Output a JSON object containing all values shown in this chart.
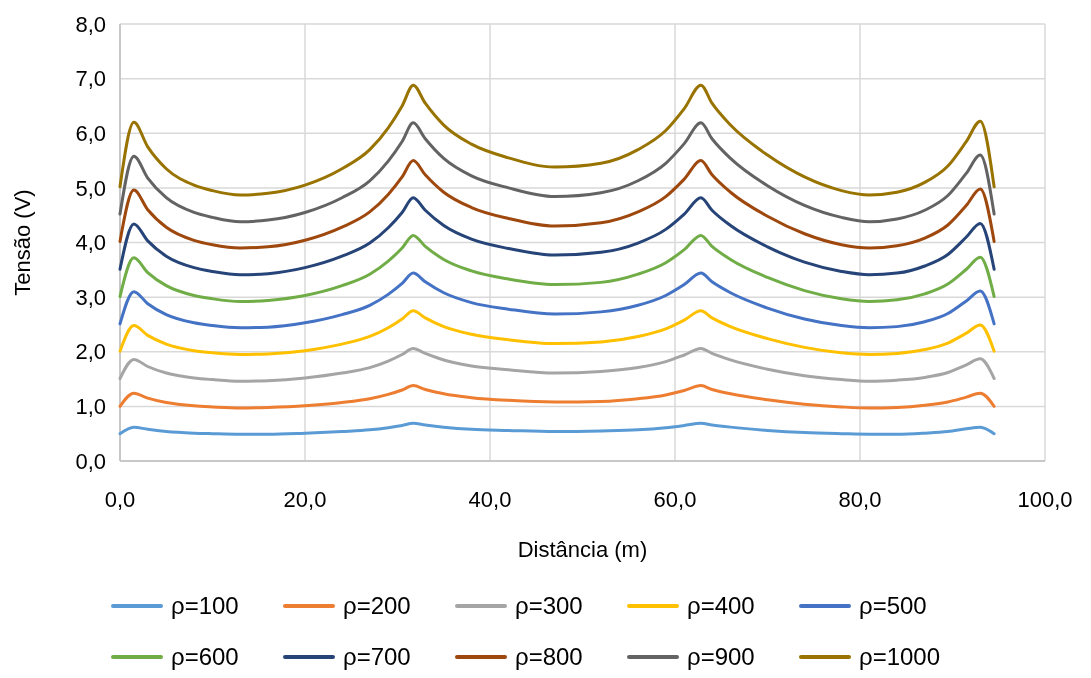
{
  "chart_data": {
    "type": "line",
    "xlabel": "Distância (m)",
    "ylabel": "Tensão (V)",
    "x": [
      0,
      1.5,
      3,
      5,
      8,
      10,
      13,
      16,
      20,
      24,
      27,
      29,
      30.5,
      31.7,
      33,
      35,
      38,
      42,
      47,
      52,
      56,
      59,
      61,
      62.8,
      64,
      66,
      70,
      74,
      78,
      81,
      84,
      87,
      89.5,
      91.5,
      93,
      94.5
    ],
    "xlim": [
      0,
      100
    ],
    "xticks": [
      {
        "value": 0,
        "label": "0,0"
      },
      {
        "value": 20,
        "label": "20,0"
      },
      {
        "value": 40,
        "label": "40,0"
      },
      {
        "value": 60,
        "label": "60,0"
      },
      {
        "value": 80,
        "label": "80,0"
      },
      {
        "value": 100,
        "label": "100,0"
      }
    ],
    "ylim": [
      0,
      8
    ],
    "yticks": [
      {
        "value": 0,
        "label": "0,0"
      },
      {
        "value": 1,
        "label": "1,0"
      },
      {
        "value": 2,
        "label": "2,0"
      },
      {
        "value": 3,
        "label": "3,0"
      },
      {
        "value": 4,
        "label": "4,0"
      },
      {
        "value": 5,
        "label": "5,0"
      },
      {
        "value": 6,
        "label": "6,0"
      },
      {
        "value": 7,
        "label": "7,0"
      },
      {
        "value": 8,
        "label": "8,0"
      }
    ],
    "grid": true,
    "legend": "bottom",
    "marker": "none",
    "line_style": "solid",
    "series": [
      {
        "name": "ρ=100",
        "color": "#5b9bd5",
        "values": [
          0.5,
          0.62,
          0.58,
          0.54,
          0.51,
          0.5,
          0.49,
          0.49,
          0.51,
          0.54,
          0.57,
          0.61,
          0.65,
          0.69,
          0.66,
          0.62,
          0.58,
          0.56,
          0.54,
          0.55,
          0.57,
          0.61,
          0.65,
          0.69,
          0.66,
          0.62,
          0.56,
          0.52,
          0.5,
          0.49,
          0.49,
          0.51,
          0.54,
          0.59,
          0.62,
          0.5
        ]
      },
      {
        "name": "ρ=200",
        "color": "#ed7d31",
        "values": [
          1.0,
          1.24,
          1.15,
          1.07,
          1.01,
          0.99,
          0.97,
          0.98,
          1.01,
          1.07,
          1.14,
          1.22,
          1.3,
          1.38,
          1.31,
          1.23,
          1.16,
          1.11,
          1.08,
          1.09,
          1.14,
          1.21,
          1.29,
          1.38,
          1.31,
          1.23,
          1.12,
          1.04,
          0.99,
          0.97,
          0.98,
          1.02,
          1.08,
          1.17,
          1.24,
          1.0
        ]
      },
      {
        "name": "ρ=300",
        "color": "#a5a5a5",
        "values": [
          1.51,
          1.86,
          1.73,
          1.61,
          1.52,
          1.49,
          1.46,
          1.47,
          1.52,
          1.61,
          1.71,
          1.83,
          1.95,
          2.06,
          1.97,
          1.85,
          1.74,
          1.67,
          1.61,
          1.64,
          1.71,
          1.82,
          1.94,
          2.06,
          1.97,
          1.85,
          1.68,
          1.56,
          1.49,
          1.46,
          1.48,
          1.53,
          1.62,
          1.76,
          1.87,
          1.51
        ]
      },
      {
        "name": "ρ=400",
        "color": "#ffc000",
        "values": [
          2.01,
          2.48,
          2.3,
          2.14,
          2.02,
          1.98,
          1.95,
          1.96,
          2.02,
          2.14,
          2.28,
          2.44,
          2.6,
          2.75,
          2.62,
          2.46,
          2.32,
          2.22,
          2.15,
          2.18,
          2.28,
          2.42,
          2.58,
          2.75,
          2.62,
          2.46,
          2.24,
          2.08,
          1.98,
          1.95,
          1.97,
          2.04,
          2.16,
          2.34,
          2.49,
          2.01
        ]
      },
      {
        "name": "ρ=500",
        "color": "#4472c4",
        "values": [
          2.51,
          3.1,
          2.88,
          2.68,
          2.53,
          2.48,
          2.44,
          2.45,
          2.53,
          2.68,
          2.85,
          3.05,
          3.25,
          3.44,
          3.28,
          3.08,
          2.9,
          2.78,
          2.69,
          2.73,
          2.85,
          3.03,
          3.23,
          3.44,
          3.28,
          3.08,
          2.8,
          2.6,
          2.48,
          2.44,
          2.46,
          2.55,
          2.7,
          2.93,
          3.11,
          2.51
        ]
      },
      {
        "name": "ρ=600",
        "color": "#70ad47",
        "values": [
          3.01,
          3.72,
          3.45,
          3.21,
          3.03,
          2.97,
          2.92,
          2.94,
          3.03,
          3.21,
          3.42,
          3.66,
          3.9,
          4.13,
          3.93,
          3.69,
          3.48,
          3.33,
          3.23,
          3.27,
          3.42,
          3.63,
          3.87,
          4.13,
          3.93,
          3.69,
          3.36,
          3.12,
          2.97,
          2.92,
          2.95,
          3.06,
          3.24,
          3.51,
          3.73,
          3.01
        ]
      },
      {
        "name": "ρ=700",
        "color": "#264478",
        "values": [
          3.51,
          4.34,
          4.03,
          3.75,
          3.54,
          3.47,
          3.41,
          3.43,
          3.54,
          3.75,
          3.99,
          4.27,
          4.55,
          4.82,
          4.59,
          4.31,
          4.06,
          3.89,
          3.77,
          3.82,
          3.99,
          4.24,
          4.52,
          4.82,
          4.59,
          4.31,
          3.92,
          3.64,
          3.47,
          3.41,
          3.44,
          3.57,
          3.78,
          4.1,
          4.35,
          3.51
        ]
      },
      {
        "name": "ρ=800",
        "color": "#9e480e",
        "values": [
          4.02,
          4.96,
          4.6,
          4.28,
          4.04,
          3.96,
          3.9,
          3.92,
          4.04,
          4.28,
          4.56,
          4.88,
          5.2,
          5.5,
          5.24,
          4.92,
          4.64,
          4.44,
          4.3,
          4.36,
          4.56,
          4.84,
          5.16,
          5.5,
          5.24,
          4.92,
          4.48,
          4.16,
          3.96,
          3.9,
          3.94,
          4.08,
          4.32,
          4.68,
          4.98,
          4.02
        ]
      },
      {
        "name": "ρ=900",
        "color": "#636363",
        "values": [
          4.52,
          5.58,
          5.18,
          4.82,
          4.55,
          4.46,
          4.38,
          4.41,
          4.55,
          4.82,
          5.13,
          5.49,
          5.85,
          6.19,
          5.9,
          5.54,
          5.22,
          5.0,
          4.84,
          4.91,
          5.13,
          5.45,
          5.81,
          6.19,
          5.9,
          5.54,
          5.04,
          4.68,
          4.46,
          4.38,
          4.43,
          4.59,
          4.86,
          5.27,
          5.6,
          4.52
        ]
      },
      {
        "name": "ρ=1000",
        "color": "#997300",
        "values": [
          5.02,
          6.2,
          5.75,
          5.35,
          5.05,
          4.95,
          4.87,
          4.9,
          5.05,
          5.35,
          5.7,
          6.1,
          6.5,
          6.88,
          6.55,
          6.15,
          5.8,
          5.55,
          5.38,
          5.45,
          5.7,
          6.05,
          6.45,
          6.88,
          6.55,
          6.15,
          5.6,
          5.2,
          4.95,
          4.87,
          4.92,
          5.1,
          5.4,
          5.85,
          6.22,
          5.02
        ]
      }
    ]
  }
}
